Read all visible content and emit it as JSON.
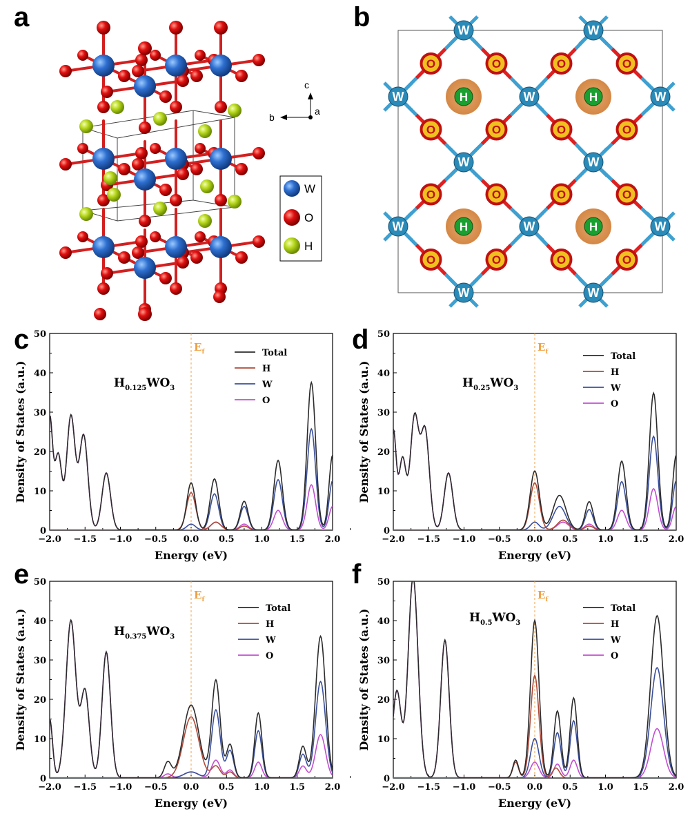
{
  "panels": {
    "a": "a",
    "b": "b",
    "c": "c",
    "d": "d",
    "e": "e",
    "f": "f"
  },
  "structure_a": {
    "legend": [
      {
        "label": "W",
        "color": "#2e6fd0"
      },
      {
        "label": "O",
        "color": "#e01010"
      },
      {
        "label": "H",
        "color": "#b8d820"
      }
    ],
    "axes": {
      "c": "c",
      "b": "b",
      "a": "a"
    }
  },
  "structure_b": {
    "w_label": "W",
    "o_label": "O",
    "h_label": "H"
  },
  "common": {
    "xlabel": "Energy (eV)",
    "ylabel": "Density of States (a.u.)",
    "ef_label": "E",
    "ef_sub": "f",
    "x_ticks": [
      "-2.0",
      "-1.5",
      "-1.0",
      "-0.5",
      "0.0",
      "0.5",
      "1.0",
      "1.5",
      "2.0"
    ],
    "y_ticks": [
      "0",
      "10",
      "20",
      "30",
      "40",
      "50"
    ],
    "legend": [
      {
        "name": "Total",
        "color": "#2b2b2b"
      },
      {
        "name": "H",
        "color": "#b04a3a"
      },
      {
        "name": "W",
        "color": "#3a4f9a"
      },
      {
        "name": "O",
        "color": "#c24ed0"
      }
    ]
  },
  "formulas": {
    "c": {
      "pre": "H",
      "sub": "0.125",
      "mid": "WO",
      "sub2": "3"
    },
    "d": {
      "pre": "H",
      "sub": "0.25",
      "mid": "WO",
      "sub2": "3"
    },
    "e": {
      "pre": "H",
      "sub": "0.375",
      "mid": "WO",
      "sub2": "3"
    },
    "f": {
      "pre": "H",
      "sub": "0.5",
      "mid": "WO",
      "sub2": "3"
    }
  },
  "chart_data": [
    {
      "panel": "c",
      "type": "line",
      "xlabel": "Energy (eV)",
      "ylabel": "Density of States (a.u.)",
      "xlim": [
        -2.0,
        2.0
      ],
      "ylim": [
        0,
        50
      ],
      "series": [
        {
          "name": "Total",
          "peaks": [
            [
              -2.0,
              28,
              0.04
            ],
            [
              -1.88,
              19,
              0.05
            ],
            [
              -1.7,
              29,
              0.06
            ],
            [
              -1.52,
              24,
              0.06
            ],
            [
              -1.2,
              14.5,
              0.06
            ],
            [
              0.0,
              12,
              0.06
            ],
            [
              0.33,
              13,
              0.06
            ],
            [
              0.75,
              7.3,
              0.055
            ],
            [
              1.23,
              17.7,
              0.06
            ],
            [
              1.7,
              37.5,
              0.06
            ],
            [
              2.0,
              19,
              0.05
            ]
          ]
        },
        {
          "name": "H",
          "peaks": [
            [
              0.0,
              9.5,
              0.065
            ],
            [
              0.35,
              2.0,
              0.07
            ],
            [
              0.75,
              1.0,
              0.06
            ]
          ]
        },
        {
          "name": "W",
          "peaks": [
            [
              0.0,
              1.5,
              0.06
            ],
            [
              0.33,
              9.2,
              0.06
            ],
            [
              0.75,
              6.0,
              0.055
            ],
            [
              1.23,
              12.8,
              0.06
            ],
            [
              1.7,
              25.7,
              0.06
            ],
            [
              2.0,
              12.5,
              0.05
            ]
          ]
        },
        {
          "name": "O",
          "peaks": [
            [
              -2.0,
              28,
              0.04
            ],
            [
              -1.88,
              19,
              0.05
            ],
            [
              -1.7,
              29,
              0.06
            ],
            [
              -1.52,
              24,
              0.06
            ],
            [
              -1.2,
              14.5,
              0.06
            ],
            [
              0.35,
              2.0,
              0.07
            ],
            [
              0.75,
              1.5,
              0.06
            ],
            [
              1.23,
              5.0,
              0.06
            ],
            [
              1.7,
              11.5,
              0.06
            ],
            [
              2.0,
              6.0,
              0.05
            ]
          ]
        }
      ]
    },
    {
      "panel": "d",
      "type": "line",
      "xlabel": "Energy (eV)",
      "ylabel": "Density of States (a.u.)",
      "xlim": [
        -2.0,
        2.0
      ],
      "ylim": [
        0,
        50
      ],
      "series": [
        {
          "name": "Total",
          "peaks": [
            [
              -2.0,
              25,
              0.04
            ],
            [
              -1.87,
              18,
              0.05
            ],
            [
              -1.7,
              28.5,
              0.06
            ],
            [
              -1.55,
              25,
              0.06
            ],
            [
              -1.22,
              14.5,
              0.06
            ],
            [
              0.0,
              15,
              0.065
            ],
            [
              0.35,
              8.8,
              0.09
            ],
            [
              0.77,
              7.2,
              0.055
            ],
            [
              1.23,
              17.5,
              0.06
            ],
            [
              1.68,
              34.8,
              0.06
            ],
            [
              2.0,
              19,
              0.05
            ]
          ]
        },
        {
          "name": "H",
          "peaks": [
            [
              0.0,
              12,
              0.065
            ],
            [
              0.4,
              2.5,
              0.08
            ],
            [
              0.77,
              1.0,
              0.06
            ]
          ]
        },
        {
          "name": "W",
          "peaks": [
            [
              0.0,
              2.0,
              0.06
            ],
            [
              0.35,
              6.0,
              0.09
            ],
            [
              0.77,
              5.2,
              0.055
            ],
            [
              1.23,
              12.3,
              0.06
            ],
            [
              1.68,
              23.8,
              0.06
            ],
            [
              2.0,
              12.5,
              0.05
            ]
          ]
        },
        {
          "name": "O",
          "peaks": [
            [
              -2.0,
              25,
              0.04
            ],
            [
              -1.87,
              18,
              0.05
            ],
            [
              -1.7,
              28.5,
              0.06
            ],
            [
              -1.55,
              25,
              0.06
            ],
            [
              -1.22,
              14.5,
              0.06
            ],
            [
              0.4,
              2.0,
              0.08
            ],
            [
              0.77,
              1.5,
              0.06
            ],
            [
              1.23,
              5.0,
              0.06
            ],
            [
              1.68,
              10.5,
              0.06
            ],
            [
              2.0,
              6.0,
              0.05
            ]
          ]
        }
      ]
    },
    {
      "panel": "e",
      "type": "line",
      "xlabel": "Energy (eV)",
      "ylabel": "Density of States (a.u.)",
      "xlim": [
        -2.0,
        2.0
      ],
      "ylim": [
        0,
        50
      ],
      "series": [
        {
          "name": "Total",
          "peaks": [
            [
              -2.0,
              15,
              0.04
            ],
            [
              -1.7,
              40,
              0.07
            ],
            [
              -1.5,
              22,
              0.06
            ],
            [
              -1.2,
              32,
              0.06
            ],
            [
              -0.33,
              4.0,
              0.05
            ],
            [
              0.0,
              18.5,
              0.11
            ],
            [
              0.35,
              24.8,
              0.06
            ],
            [
              0.55,
              8.5,
              0.05
            ],
            [
              0.95,
              16.5,
              0.05
            ],
            [
              1.58,
              8.0,
              0.05
            ],
            [
              1.83,
              36,
              0.07
            ]
          ]
        },
        {
          "name": "H",
          "peaks": [
            [
              0.0,
              15.5,
              0.11
            ],
            [
              0.35,
              3.0,
              0.06
            ],
            [
              0.55,
              1.5,
              0.05
            ]
          ]
        },
        {
          "name": "W",
          "peaks": [
            [
              0.0,
              1.5,
              0.1
            ],
            [
              0.35,
              17.3,
              0.06
            ],
            [
              0.55,
              7.0,
              0.05
            ],
            [
              0.95,
              12.0,
              0.05
            ],
            [
              1.58,
              6.0,
              0.05
            ],
            [
              1.83,
              24.5,
              0.07
            ]
          ]
        },
        {
          "name": "O",
          "peaks": [
            [
              -2.0,
              15,
              0.04
            ],
            [
              -1.7,
              40,
              0.07
            ],
            [
              -1.5,
              22,
              0.06
            ],
            [
              -1.2,
              32,
              0.06
            ],
            [
              -0.33,
              1.0,
              0.05
            ],
            [
              0.0,
              1.5,
              0.1
            ],
            [
              0.35,
              4.5,
              0.06
            ],
            [
              0.55,
              2.0,
              0.05
            ],
            [
              0.95,
              4.0,
              0.05
            ],
            [
              1.58,
              3.0,
              0.05
            ],
            [
              1.83,
              11.0,
              0.07
            ]
          ]
        }
      ]
    },
    {
      "panel": "f",
      "type": "line",
      "xlabel": "Energy (eV)",
      "ylabel": "Density of States (a.u.)",
      "xlim": [
        -2.0,
        2.0
      ],
      "ylim": [
        0,
        50
      ],
      "series": [
        {
          "name": "Total",
          "peaks": [
            [
              -1.95,
              22,
              0.06
            ],
            [
              -1.72,
              51,
              0.07
            ],
            [
              -1.27,
              35,
              0.06
            ],
            [
              -0.27,
              4.5,
              0.04
            ],
            [
              0.0,
              40,
              0.06
            ],
            [
              0.32,
              17,
              0.05
            ],
            [
              0.55,
              20.3,
              0.05
            ],
            [
              1.73,
              41.2,
              0.09
            ]
          ]
        },
        {
          "name": "H",
          "peaks": [
            [
              0.0,
              26,
              0.06
            ],
            [
              -0.27,
              4.0,
              0.04
            ],
            [
              0.3,
              2.5,
              0.05
            ]
          ]
        },
        {
          "name": "W",
          "peaks": [
            [
              0.0,
              10,
              0.06
            ],
            [
              0.32,
              11.5,
              0.05
            ],
            [
              0.55,
              14.5,
              0.05
            ],
            [
              1.73,
              28,
              0.09
            ]
          ]
        },
        {
          "name": "O",
          "peaks": [
            [
              -1.95,
              22,
              0.06
            ],
            [
              -1.72,
              51,
              0.07
            ],
            [
              -1.27,
              35,
              0.06
            ],
            [
              0.0,
              4.0,
              0.06
            ],
            [
              0.32,
              3.5,
              0.05
            ],
            [
              0.55,
              4.5,
              0.05
            ],
            [
              1.73,
              12.5,
              0.09
            ]
          ]
        }
      ]
    }
  ]
}
